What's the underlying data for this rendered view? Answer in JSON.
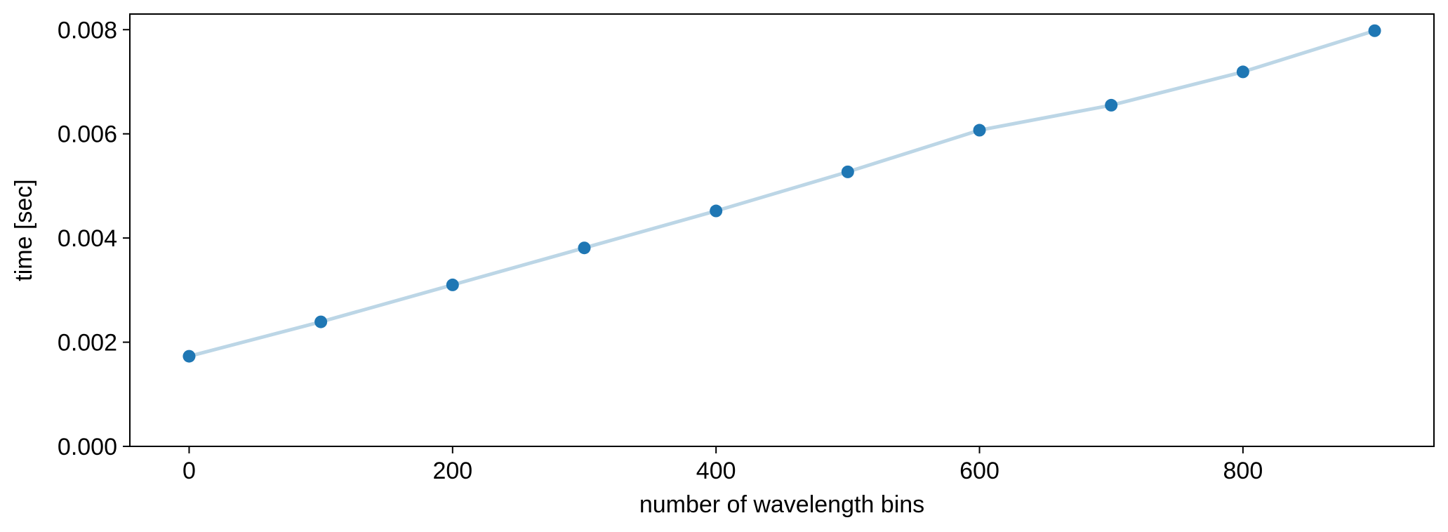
{
  "chart_data": {
    "type": "line",
    "title": "",
    "xlabel": "number of wavelength bins",
    "ylabel": "time [sec]",
    "xlim": [
      -45,
      945
    ],
    "ylim": [
      0.0,
      0.0083
    ],
    "x_ticks": [
      0,
      200,
      400,
      600,
      800
    ],
    "x_tick_labels": [
      "0",
      "200",
      "400",
      "600",
      "800"
    ],
    "y_ticks": [
      0.0,
      0.002,
      0.004,
      0.006,
      0.008
    ],
    "y_tick_labels": [
      "0.000",
      "0.002",
      "0.004",
      "0.006",
      "0.008"
    ],
    "grid": false,
    "legend": "none",
    "series": [
      {
        "x": [
          0,
          100,
          200,
          300,
          400,
          500,
          600,
          700,
          800,
          900
        ],
        "y": [
          0.00173,
          0.00239,
          0.0031,
          0.00381,
          0.00452,
          0.00527,
          0.00607,
          0.00655,
          0.00719,
          0.00798
        ],
        "line_color": "#bcd6e6",
        "marker_color": "#1f77b4"
      }
    ]
  }
}
